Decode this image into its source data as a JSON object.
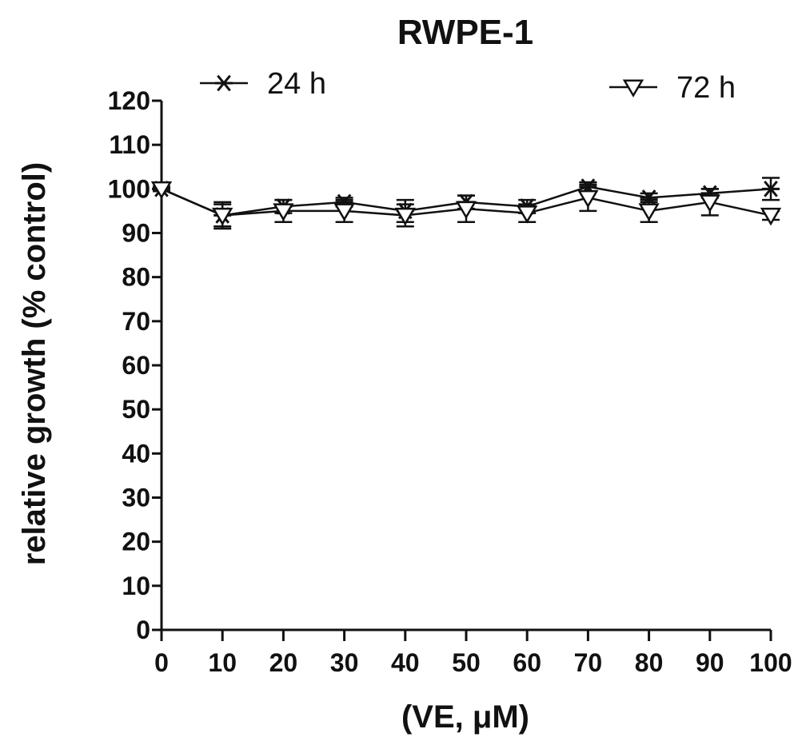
{
  "chart_data": {
    "type": "line",
    "title": "RWPE-1",
    "xlabel": "(VE, μM)",
    "ylabel": "relative growth (% control)",
    "x": [
      0,
      10,
      20,
      30,
      40,
      50,
      60,
      70,
      80,
      90,
      100
    ],
    "xlim": [
      0,
      100
    ],
    "ylim": [
      0,
      120
    ],
    "x_ticks": [
      0,
      10,
      20,
      30,
      40,
      50,
      60,
      70,
      80,
      90,
      100
    ],
    "y_ticks": [
      0,
      10,
      20,
      30,
      40,
      50,
      60,
      70,
      80,
      90,
      100,
      110,
      120
    ],
    "grid": false,
    "legend": "top",
    "series": [
      {
        "name": "24 h",
        "marker": "asterisk",
        "color": "#111111",
        "values": [
          100,
          94,
          96,
          97,
          95,
          97,
          96,
          100.5,
          98,
          99,
          100
        ],
        "errors": [
          0.5,
          2.5,
          1.5,
          1,
          2.5,
          1.5,
          1.5,
          1,
          1,
          1,
          2.5
        ]
      },
      {
        "name": "72 h",
        "marker": "triangle-down",
        "color": "#111111",
        "values": [
          100,
          94,
          95,
          95,
          94,
          95.5,
          94.5,
          98,
          95,
          97,
          94
        ],
        "errors": [
          0.5,
          3,
          2.5,
          2.5,
          2.5,
          3,
          2,
          3,
          2.5,
          3,
          1
        ]
      }
    ]
  }
}
